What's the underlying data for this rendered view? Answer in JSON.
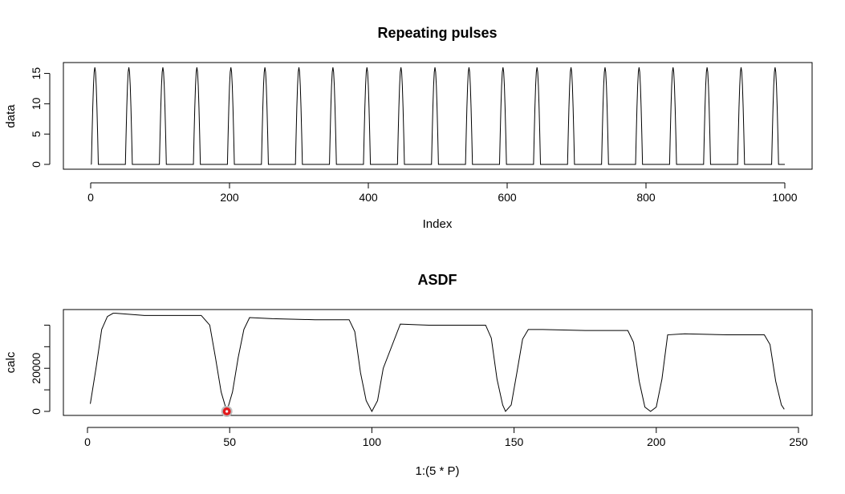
{
  "chart_data": [
    {
      "type": "line",
      "title": "Repeating pulses",
      "xlabel": "Index",
      "ylabel": "data",
      "xlim": [
        0,
        1000
      ],
      "ylim": [
        0,
        16
      ],
      "x_ticks": [
        0,
        200,
        400,
        600,
        800,
        1000
      ],
      "y_ticks": [
        0,
        5,
        10,
        15
      ],
      "grid": false,
      "pulse_period": 49,
      "pulse_count": 21,
      "pulse_peak": 16,
      "pulse_width": 10,
      "series": [
        {
          "values_description": "periodic pulses",
          "color": "#000000"
        }
      ]
    },
    {
      "type": "line",
      "title": "ASDF",
      "xlabel": "1:(5 * P)",
      "ylabel": "calc",
      "xlim": [
        0,
        250
      ],
      "ylim": [
        0,
        45000
      ],
      "x_ticks": [
        0,
        50,
        100,
        150,
        200,
        250
      ],
      "y_ticks": [
        0,
        10000,
        20000,
        30000,
        40000
      ],
      "y_tick_labels": [
        "0",
        "",
        "20000",
        "",
        ""
      ],
      "grid": false,
      "x": [
        1,
        3,
        5,
        7,
        9,
        10,
        15,
        20,
        30,
        40,
        43,
        45,
        47,
        49,
        51,
        53,
        55,
        57,
        65,
        80,
        92,
        94,
        96,
        98,
        100,
        102,
        104,
        110,
        120,
        140,
        142,
        144,
        146,
        147,
        149,
        151,
        153,
        155,
        160,
        175,
        190,
        192,
        194,
        196,
        198,
        200,
        202,
        204,
        210,
        225,
        238,
        240,
        242,
        244,
        245
      ],
      "y": [
        3500,
        20000,
        38000,
        44000,
        45500,
        45500,
        45000,
        44500,
        44500,
        44500,
        40000,
        25000,
        9000,
        0,
        9000,
        25000,
        38000,
        43500,
        43000,
        42500,
        42500,
        37000,
        18000,
        5000,
        0,
        5000,
        20000,
        40500,
        40000,
        40000,
        34000,
        15000,
        3000,
        0,
        3000,
        18000,
        33500,
        38000,
        38000,
        37500,
        37500,
        32000,
        14000,
        2000,
        0,
        2000,
        15000,
        35500,
        36000,
        35500,
        35500,
        31000,
        14000,
        3000,
        1000
      ],
      "highlight_point": {
        "x": 49,
        "y": 0,
        "color": "#e31a1c"
      },
      "series": [
        {
          "color": "#000000"
        }
      ]
    }
  ]
}
